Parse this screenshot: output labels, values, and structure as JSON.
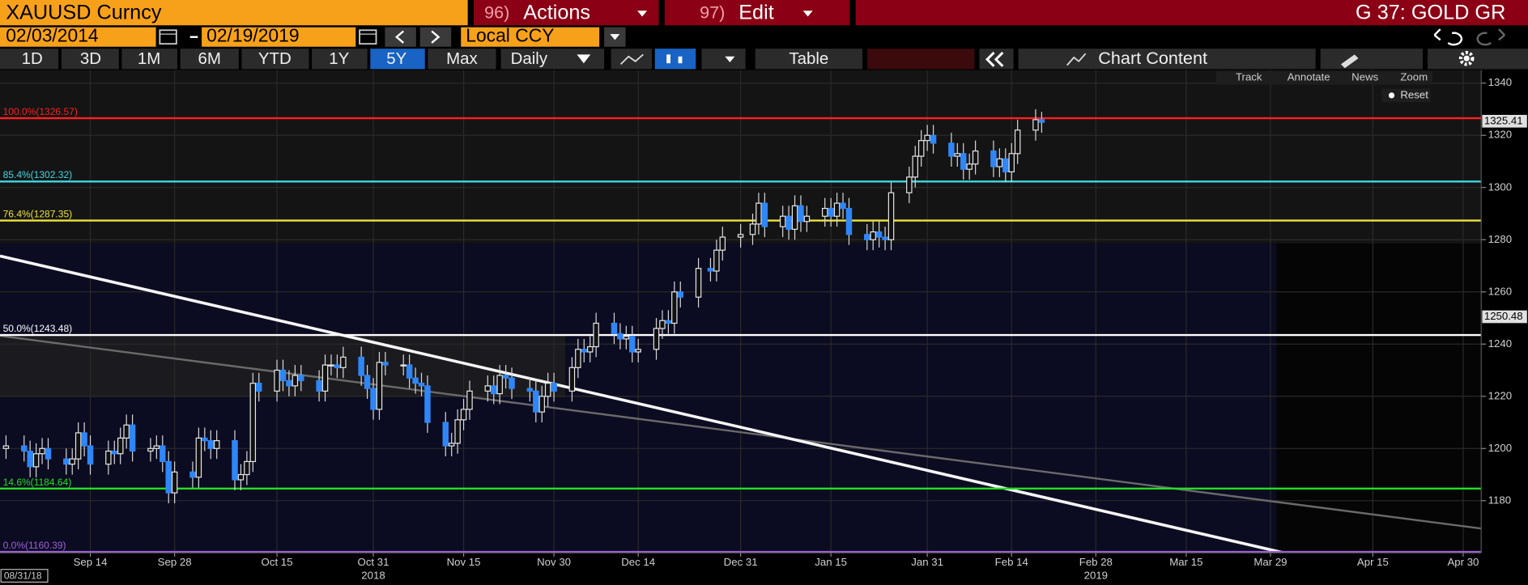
{
  "header": {
    "security": "XAUUSD Curncy",
    "actions": {
      "number": "96)",
      "label": "Actions"
    },
    "edit": {
      "number": "97)",
      "label": "Edit"
    },
    "function": "G 37: GOLD GR",
    "start_date": "02/03/2014",
    "end_date": "02/19/2019",
    "currency": "Local CCY",
    "periods": [
      "1D",
      "3D",
      "1M",
      "6M",
      "YTD",
      "1Y",
      "5Y",
      "Max"
    ],
    "frequency": "Daily",
    "table": "Table",
    "chart_content": "Chart Content",
    "tools": [
      "Track",
      "Annotate",
      "News",
      "Zoom"
    ],
    "reset": "Reset"
  },
  "chart_data": {
    "type": "candlestick",
    "x": [
      "2018-08-31",
      "2018-09-03",
      "2018-09-04",
      "2018-09-05",
      "2018-09-06",
      "2018-09-07",
      "2018-09-10",
      "2018-09-11",
      "2018-09-12",
      "2018-09-13",
      "2018-09-14",
      "2018-09-17",
      "2018-09-18",
      "2018-09-19",
      "2018-09-20",
      "2018-09-21",
      "2018-09-24",
      "2018-09-25",
      "2018-09-26",
      "2018-09-27",
      "2018-09-28",
      "2018-10-01",
      "2018-10-02",
      "2018-10-03",
      "2018-10-04",
      "2018-10-05",
      "2018-10-08",
      "2018-10-09",
      "2018-10-10",
      "2018-10-11",
      "2018-10-12",
      "2018-10-15",
      "2018-10-16",
      "2018-10-17",
      "2018-10-18",
      "2018-10-19",
      "2018-10-22",
      "2018-10-23",
      "2018-10-24",
      "2018-10-25",
      "2018-10-26",
      "2018-10-29",
      "2018-10-30",
      "2018-10-31",
      "2018-11-01",
      "2018-11-02",
      "2018-11-05",
      "2018-11-06",
      "2018-11-07",
      "2018-11-08",
      "2018-11-09",
      "2018-11-12",
      "2018-11-13",
      "2018-11-14",
      "2018-11-15",
      "2018-11-16",
      "2018-11-19",
      "2018-11-20",
      "2018-11-21",
      "2018-11-22",
      "2018-11-23",
      "2018-11-26",
      "2018-11-27",
      "2018-11-28",
      "2018-11-29",
      "2018-11-30",
      "2018-12-03",
      "2018-12-04",
      "2018-12-05",
      "2018-12-06",
      "2018-12-07",
      "2018-12-10",
      "2018-12-11",
      "2018-12-12",
      "2018-12-13",
      "2018-12-14",
      "2018-12-17",
      "2018-12-18",
      "2018-12-19",
      "2018-12-20",
      "2018-12-21",
      "2018-12-24",
      "2018-12-26",
      "2018-12-27",
      "2018-12-28",
      "2018-12-31",
      "2019-01-02",
      "2019-01-03",
      "2019-01-04",
      "2019-01-07",
      "2019-01-08",
      "2019-01-09",
      "2019-01-10",
      "2019-01-11",
      "2019-01-14",
      "2019-01-15",
      "2019-01-16",
      "2019-01-17",
      "2019-01-18",
      "2019-01-21",
      "2019-01-22",
      "2019-01-23",
      "2019-01-24",
      "2019-01-25",
      "2019-01-28",
      "2019-01-29",
      "2019-01-30",
      "2019-01-31",
      "2019-02-01",
      "2019-02-04",
      "2019-02-05",
      "2019-02-06",
      "2019-02-07",
      "2019-02-08",
      "2019-02-11",
      "2019-02-12",
      "2019-02-13",
      "2019-02-14",
      "2019-02-15",
      "2019-02-18",
      "2019-02-19"
    ],
    "open": [
      1200,
      1201,
      1199,
      1193,
      1198,
      1200,
      1196,
      1194,
      1196,
      1206,
      1201,
      1194,
      1199,
      1198,
      1204,
      1209,
      1199,
      1200,
      1201,
      1195,
      1183,
      1191,
      1189,
      1204,
      1203,
      1200,
      1203,
      1188,
      1190,
      1195,
      1225,
      1222,
      1230,
      1226,
      1224,
      1228,
      1226,
      1222,
      1232,
      1232,
      1231,
      1235,
      1228,
      1223,
      1215,
      1233,
      1232,
      1232,
      1227,
      1225,
      1224,
      1210,
      1201,
      1202,
      1211,
      1215,
      1222,
      1224,
      1221,
      1228,
      1227,
      1223,
      1222,
      1214,
      1220,
      1225,
      1222,
      1231,
      1238,
      1237,
      1239,
      1248,
      1244,
      1242,
      1243,
      1237,
      1238,
      1246,
      1249,
      1248,
      1260,
      1258,
      1269,
      1268,
      1276,
      1281,
      1282,
      1286,
      1294,
      1285,
      1289,
      1284,
      1293,
      1287,
      1289,
      1292,
      1289,
      1294,
      1292,
      1282,
      1280,
      1283,
      1281,
      1280,
      1298,
      1304,
      1312,
      1318,
      1320,
      1317,
      1312,
      1313,
      1307,
      1309,
      1314,
      1308,
      1311,
      1306,
      1313,
      1322,
      1326
    ],
    "high": [
      1205,
      1205,
      1203,
      1202,
      1204,
      1204,
      1200,
      1200,
      1210,
      1210,
      1205,
      1203,
      1203,
      1208,
      1213,
      1213,
      1204,
      1205,
      1205,
      1199,
      1195,
      1195,
      1208,
      1208,
      1207,
      1207,
      1207,
      1194,
      1199,
      1229,
      1229,
      1234,
      1234,
      1230,
      1232,
      1232,
      1230,
      1236,
      1236,
      1236,
      1239,
      1239,
      1232,
      1227,
      1237,
      1237,
      1236,
      1236,
      1231,
      1229,
      1228,
      1214,
      1206,
      1215,
      1219,
      1226,
      1228,
      1228,
      1232,
      1232,
      1231,
      1227,
      1226,
      1224,
      1229,
      1229,
      1235,
      1242,
      1242,
      1243,
      1252,
      1252,
      1248,
      1247,
      1247,
      1242,
      1250,
      1253,
      1253,
      1264,
      1264,
      1273,
      1273,
      1280,
      1285,
      1286,
      1290,
      1298,
      1298,
      1293,
      1293,
      1297,
      1297,
      1293,
      1296,
      1296,
      1298,
      1298,
      1296,
      1286,
      1287,
      1287,
      1285,
      1302,
      1308,
      1316,
      1322,
      1324,
      1324,
      1321,
      1317,
      1317,
      1313,
      1318,
      1318,
      1315,
      1315,
      1317,
      1326,
      1330,
      1329
    ],
    "low": [
      1196,
      1195,
      1189,
      1189,
      1194,
      1192,
      1190,
      1190,
      1192,
      1197,
      1190,
      1190,
      1194,
      1194,
      1200,
      1195,
      1195,
      1196,
      1191,
      1179,
      1179,
      1185,
      1185,
      1199,
      1196,
      1196,
      1184,
      1184,
      1186,
      1191,
      1218,
      1218,
      1222,
      1220,
      1220,
      1222,
      1218,
      1218,
      1228,
      1227,
      1227,
      1224,
      1219,
      1211,
      1211,
      1228,
      1228,
      1223,
      1221,
      1220,
      1206,
      1197,
      1197,
      1198,
      1207,
      1211,
      1218,
      1217,
      1217,
      1223,
      1219,
      1218,
      1210,
      1210,
      1216,
      1218,
      1218,
      1227,
      1233,
      1233,
      1235,
      1240,
      1238,
      1238,
      1233,
      1233,
      1234,
      1242,
      1244,
      1244,
      1254,
      1254,
      1264,
      1264,
      1272,
      1277,
      1278,
      1282,
      1281,
      1281,
      1280,
      1280,
      1283,
      1283,
      1285,
      1285,
      1285,
      1288,
      1278,
      1276,
      1276,
      1277,
      1276,
      1276,
      1294,
      1300,
      1308,
      1314,
      1313,
      1308,
      1308,
      1303,
      1303,
      1305,
      1304,
      1304,
      1302,
      1302,
      1309,
      1318,
      1321
    ],
    "close": [
      1201,
      1199,
      1193,
      1198,
      1200,
      1196,
      1194,
      1196,
      1206,
      1201,
      1194,
      1199,
      1198,
      1204,
      1209,
      1199,
      1200,
      1201,
      1195,
      1183,
      1191,
      1189,
      1204,
      1203,
      1200,
      1203,
      1188,
      1190,
      1195,
      1225,
      1222,
      1230,
      1226,
      1224,
      1228,
      1226,
      1222,
      1232,
      1232,
      1231,
      1235,
      1228,
      1223,
      1215,
      1233,
      1232,
      1232,
      1227,
      1225,
      1224,
      1210,
      1201,
      1202,
      1211,
      1215,
      1222,
      1224,
      1221,
      1228,
      1227,
      1223,
      1222,
      1214,
      1220,
      1225,
      1222,
      1231,
      1238,
      1237,
      1239,
      1248,
      1244,
      1242,
      1243,
      1237,
      1238,
      1246,
      1249,
      1248,
      1260,
      1258,
      1269,
      1268,
      1276,
      1281,
      1282,
      1286,
      1294,
      1285,
      1289,
      1284,
      1293,
      1287,
      1289,
      1292,
      1289,
      1294,
      1292,
      1282,
      1280,
      1283,
      1281,
      1280,
      1298,
      1304,
      1312,
      1318,
      1320,
      1317,
      1312,
      1313,
      1307,
      1309,
      1314,
      1308,
      1311,
      1306,
      1313,
      1322,
      1326,
      1325
    ],
    "up_color": "#e6e6e6",
    "down_color": "#2f86f6",
    "xlim": [
      "2018-08-30",
      "2019-05-03"
    ],
    "xticks": [
      {
        "value": "2018-09-14",
        "label": "Sep 14"
      },
      {
        "value": "2018-09-28",
        "label": "Sep 28"
      },
      {
        "value": "2018-10-15",
        "label": "Oct 15"
      },
      {
        "value": "2018-10-31",
        "label": "Oct 31"
      },
      {
        "value": "2018-11-15",
        "label": "Nov 15"
      },
      {
        "value": "2018-11-30",
        "label": "Nov 30"
      },
      {
        "value": "2018-12-14",
        "label": "Dec 14"
      },
      {
        "value": "2018-12-31",
        "label": "Dec 31"
      },
      {
        "value": "2019-01-15",
        "label": "Jan 15"
      },
      {
        "value": "2019-01-31",
        "label": "Jan 31"
      },
      {
        "value": "2019-02-14",
        "label": "Feb 14"
      },
      {
        "value": "2019-02-28",
        "label": "Feb 28"
      },
      {
        "value": "2019-03-15",
        "label": "Mar 15"
      },
      {
        "value": "2019-03-29",
        "label": "Mar 29"
      },
      {
        "value": "2019-04-15",
        "label": "Apr 15"
      },
      {
        "value": "2019-04-30",
        "label": "Apr 30"
      }
    ],
    "year_labels": [
      {
        "value": "2018-10-31",
        "label": "2018"
      },
      {
        "value": "2019-02-28",
        "label": "2019"
      }
    ],
    "start_label": "08/31/18",
    "ylim": [
      1160,
      1345
    ],
    "yticks": [
      1180,
      1200,
      1220,
      1240,
      1260,
      1280,
      1300,
      1320,
      1340
    ],
    "grid": true,
    "levels": [
      {
        "label": "100.0%(1326.57)",
        "value": 1326.57,
        "color": "#ff1f1f"
      },
      {
        "label": "85.4%(1302.32)",
        "value": 1302.32,
        "color": "#3fd8e4"
      },
      {
        "label": "76.4%(1287.35)",
        "value": 1287.35,
        "color": "#ece43c"
      },
      {
        "label": "50.0%(1243.48)",
        "value": 1243.48,
        "color": "#ffffff"
      },
      {
        "label": "14.6%(1184.64)",
        "value": 1184.64,
        "color": "#22e022"
      },
      {
        "label": "0.0%(1160.39)",
        "value": 1160.39,
        "color": "#a060d8"
      }
    ],
    "price_tags": [
      1325.41,
      1250.48
    ]
  }
}
